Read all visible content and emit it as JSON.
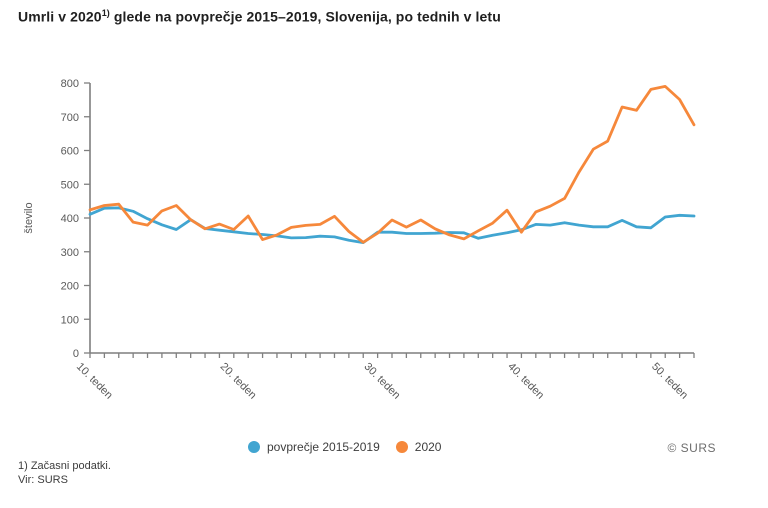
{
  "title": {
    "part1": "Umrli v 2020",
    "superscript": "1)",
    "part2": " glede na povprečje 2015–2019, Slovenija, po tednih v letu"
  },
  "watermark": "© SURS",
  "footnotes": [
    "1) Začasni podatki.",
    "Vir: SURS"
  ],
  "chart_data": {
    "type": "line",
    "title": "Umrli v 2020 glede na povprečje 2015–2019, Slovenija, po tednih v letu",
    "xlabel": "",
    "ylabel": "število",
    "ylim": [
      0,
      800
    ],
    "y_tick_step": 100,
    "grid": false,
    "legend_position": "bottom",
    "x": [
      10,
      11,
      12,
      13,
      14,
      15,
      16,
      17,
      18,
      19,
      20,
      21,
      22,
      23,
      24,
      25,
      26,
      27,
      28,
      29,
      30,
      31,
      32,
      33,
      34,
      35,
      36,
      37,
      38,
      39,
      40,
      41,
      42,
      43,
      44,
      45,
      46,
      47,
      48,
      49,
      50,
      51,
      52
    ],
    "x_tick_labels": [
      {
        "week": 10,
        "label": "10. teden"
      },
      {
        "week": 20,
        "label": "20. teden"
      },
      {
        "week": 30,
        "label": "30. teden"
      },
      {
        "week": 40,
        "label": "40. teden"
      },
      {
        "week": 50,
        "label": "50. teden"
      }
    ],
    "series": [
      {
        "name": "povprečje 2015-2019",
        "color": "#41A5D1",
        "values": [
          411,
          429,
          430,
          420,
          398,
          380,
          366,
          395,
          369,
          364,
          359,
          354,
          351,
          347,
          341,
          342,
          346,
          344,
          334,
          327,
          358,
          358,
          354,
          354,
          355,
          357,
          356,
          340,
          349,
          356,
          365,
          381,
          379,
          386,
          379,
          374,
          374,
          393,
          374,
          371,
          403,
          408,
          406
        ]
      },
      {
        "name": "2020",
        "color": "#F6883B",
        "values": [
          424,
          437,
          441,
          388,
          379,
          421,
          437,
          395,
          368,
          382,
          366,
          406,
          336,
          350,
          372,
          378,
          381,
          405,
          360,
          328,
          355,
          394,
          373,
          394,
          368,
          350,
          338,
          362,
          385,
          423,
          358,
          418,
          435,
          458,
          536,
          604,
          628,
          729,
          719,
          781,
          790,
          751,
          676
        ]
      }
    ]
  }
}
